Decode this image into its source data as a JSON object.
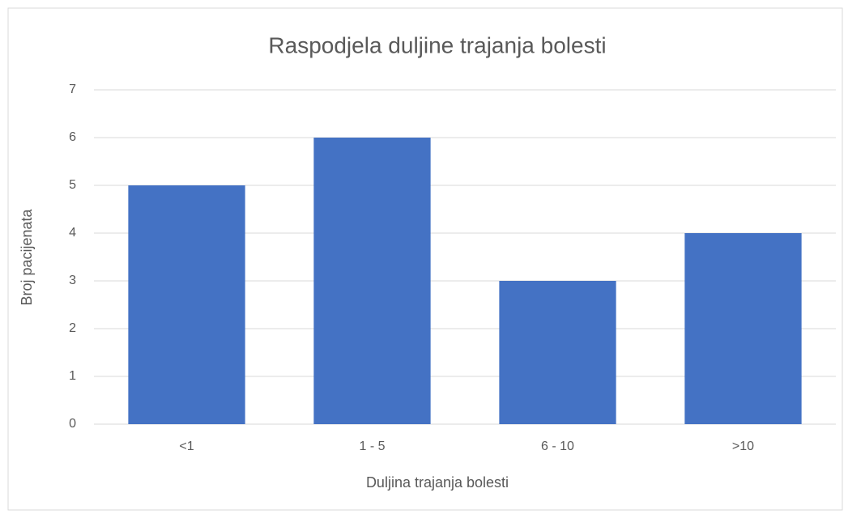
{
  "chart_data": {
    "type": "bar",
    "title": "Raspodjela duljine trajanja bolesti",
    "x_label": "Duljina trajanja bolesti",
    "y_label": "Broj pacijenata",
    "categories": [
      "<1",
      "1 - 5",
      "6 - 10",
      ">10"
    ],
    "values": [
      5,
      6,
      3,
      4
    ],
    "color": "#4472c4",
    "ylim": [
      0,
      7
    ],
    "yticks": [
      0,
      1,
      2,
      3,
      4,
      5,
      6,
      7
    ],
    "grid": true
  }
}
